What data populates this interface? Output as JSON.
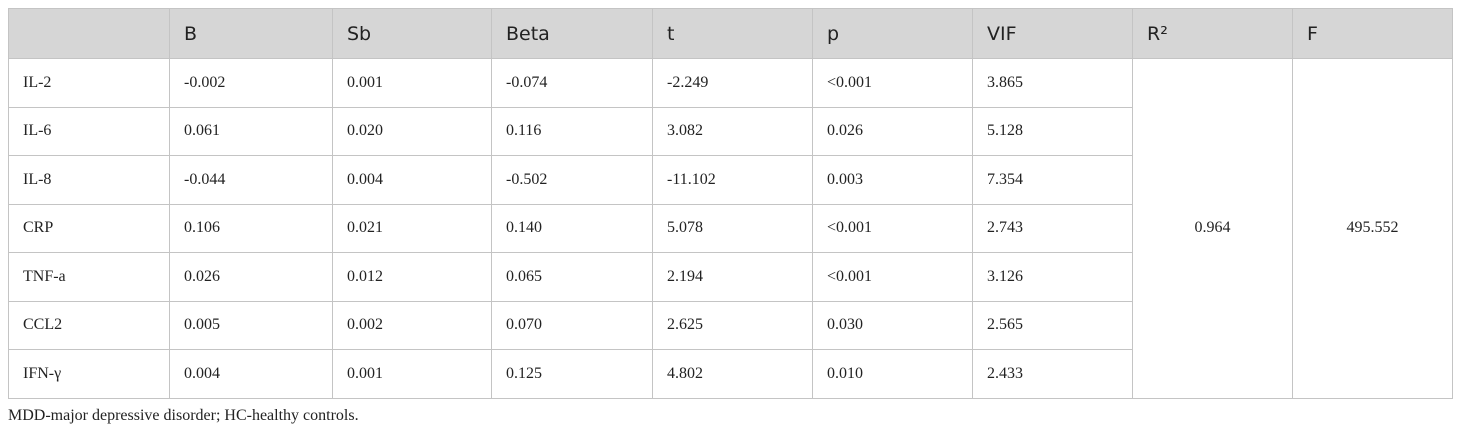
{
  "table": {
    "header": [
      "B",
      "Sb",
      "Beta",
      "t",
      "p",
      "VIF",
      "R²",
      "F"
    ],
    "rows": [
      [
        "IL-2",
        "-0.002",
        "0.001",
        "-0.074",
        "-2.249",
        "<0.001",
        "3.865"
      ],
      [
        "IL-6",
        "0.061",
        "0.020",
        "0.116",
        "3.082",
        "0.026",
        "5.128"
      ],
      [
        "IL-8",
        "-0.044",
        "0.004",
        "-0.502",
        "-11.102",
        "0.003",
        "7.354"
      ],
      [
        "CRP",
        "0.106",
        "0.021",
        "0.140",
        "5.078",
        "<0.001",
        "2.743"
      ],
      [
        "TNF-a",
        "0.026",
        "0.012",
        "0.065",
        "2.194",
        "<0.001",
        "3.126"
      ],
      [
        "CCL2",
        "0.005",
        "0.002",
        "0.070",
        "2.625",
        "0.030",
        "2.565"
      ],
      [
        "IFN-γ",
        "0.004",
        "0.001",
        "0.125",
        "4.802",
        "0.010",
        "2.433"
      ]
    ],
    "summary": [
      "0.964",
      "495.552"
    ]
  },
  "footnote": "MDD-major depressive disorder; HC-healthy controls."
}
